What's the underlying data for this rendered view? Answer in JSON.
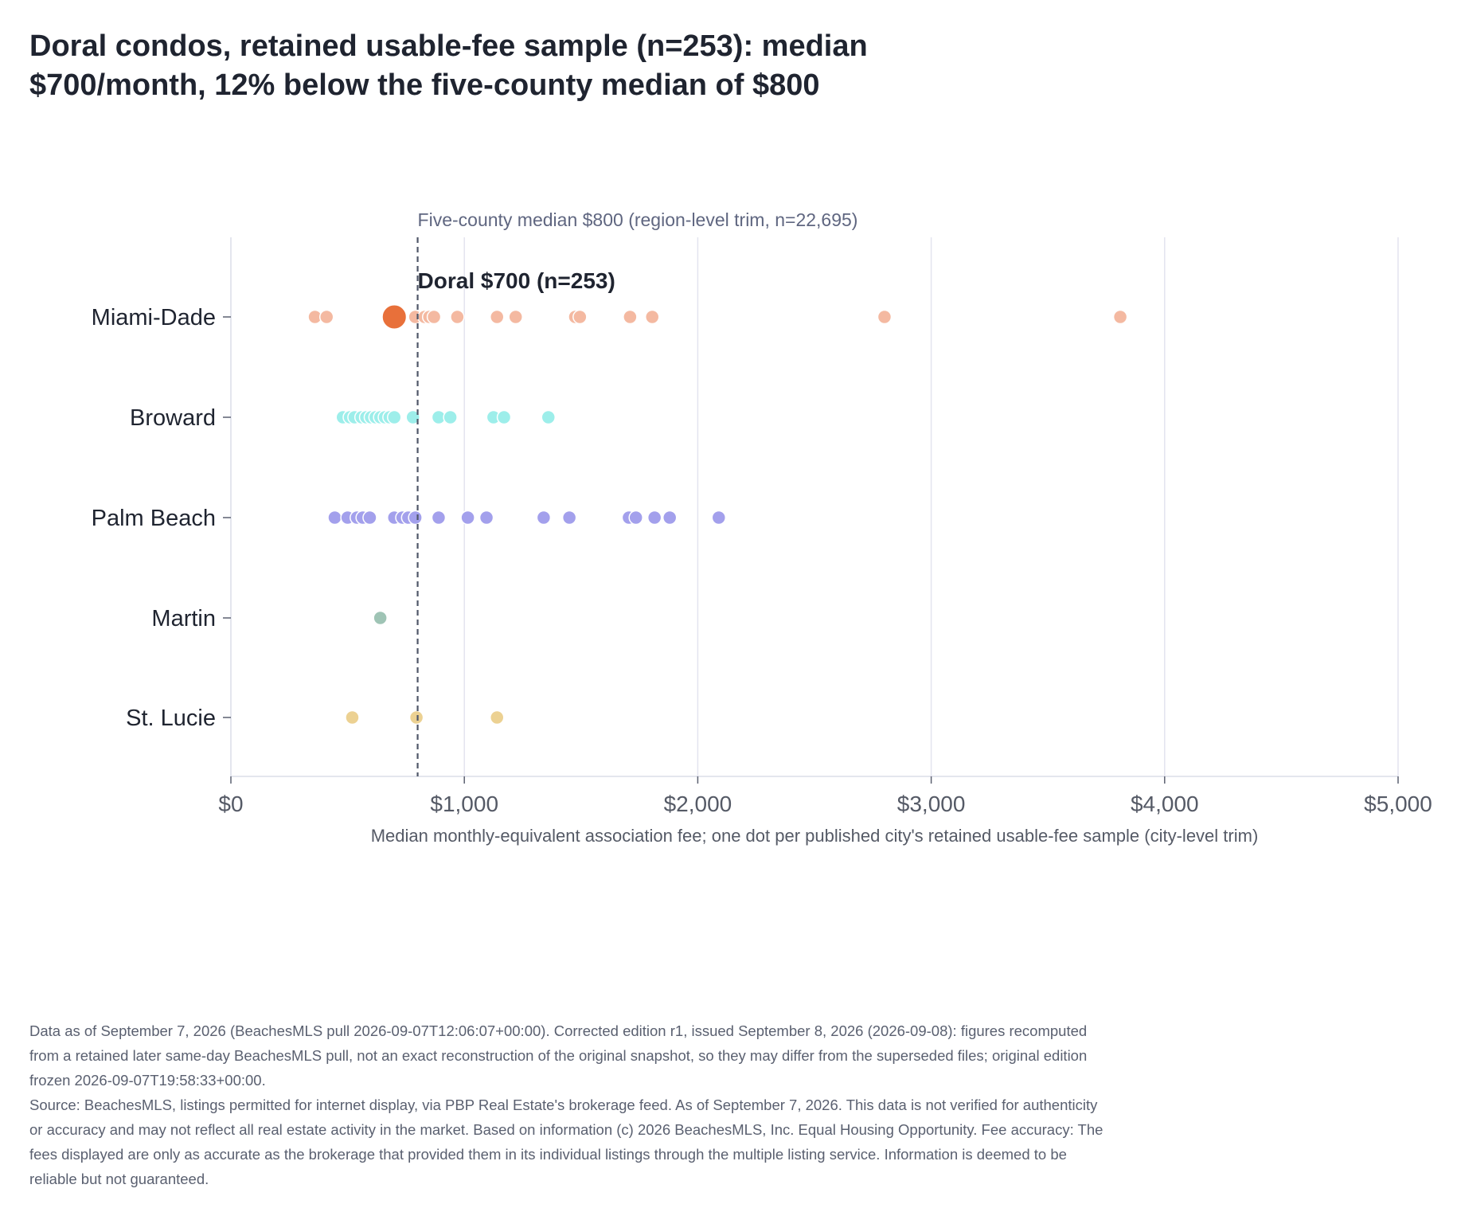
{
  "title_lines": [
    "Doral condos, retained usable-fee sample (n=253): median",
    "$700/month, 12% below the five-county median of $800"
  ],
  "footer": {
    "note": "Data as of September 7, 2026 (BeachesMLS pull 2026-09-07T12:06:07+00:00). Corrected edition r1, issued September 8, 2026 (2026-09-08): figures recomputed from a retained later same-day BeachesMLS pull, not an exact reconstruction of the original snapshot, so they may differ from the superseded files; original edition frozen 2026-09-07T19:58:33+00:00.",
    "source": "Source: BeachesMLS, listings permitted for internet display, via PBP Real Estate's brokerage feed. As of September 7, 2026. This data is not verified for authenticity or accuracy and may not reflect all real estate activity in the market. Based on information (c) 2026 BeachesMLS, Inc. Equal Housing Opportunity. Fee accuracy: The fees displayed are only as accurate as the brokerage that provided them in its individual listings through the multiple listing service. Information is deemed to be reliable but not guaranteed."
  },
  "chart_data": {
    "type": "scatter",
    "orientation": "horizontal strip plot",
    "categories": [
      "Miami-Dade",
      "Broward",
      "Palm Beach",
      "Martin",
      "St. Lucie"
    ],
    "xlabel": "Median monthly-equivalent association fee; one dot per published city's retained usable-fee sample (city-level trim)",
    "xlim": [
      0,
      5000
    ],
    "xticks": [
      0,
      1000,
      2000,
      3000,
      4000,
      5000
    ],
    "xtick_labels": [
      "$0",
      "$1,000",
      "$2,000",
      "$3,000",
      "$4,000",
      "$5,000"
    ],
    "grid": "vertical",
    "series": [
      {
        "category": "Miami-Dade",
        "color": "#f4b9a1",
        "values": [
          360,
          410,
          790,
          830,
          850,
          870,
          970,
          1140,
          1220,
          1475,
          1495,
          1710,
          1805,
          2800,
          3810
        ]
      },
      {
        "category": "Broward",
        "color": "#9deeea",
        "values": [
          480,
          510,
          530,
          560,
          580,
          600,
          620,
          640,
          660,
          680,
          700,
          780,
          890,
          940,
          1125,
          1170,
          1360
        ]
      },
      {
        "category": "Palm Beach",
        "color": "#a3a0ec",
        "values": [
          445,
          500,
          540,
          565,
          595,
          700,
          735,
          760,
          790,
          890,
          1015,
          1095,
          1340,
          1450,
          1705,
          1735,
          1815,
          1880,
          2090
        ]
      },
      {
        "category": "Martin",
        "color": "#9fc4b5",
        "values": [
          640
        ]
      },
      {
        "category": "St. Lucie",
        "color": "#ecd192",
        "values": [
          520,
          795,
          1140
        ]
      }
    ],
    "highlight": {
      "category": "Miami-Dade",
      "value": 700,
      "label": "Doral $700 (n=253)",
      "color": "#e8703a"
    },
    "reference_line": {
      "value": 800,
      "label": "Five-county median $800 (region-level trim, n=22,695)",
      "style": "dashed"
    }
  }
}
